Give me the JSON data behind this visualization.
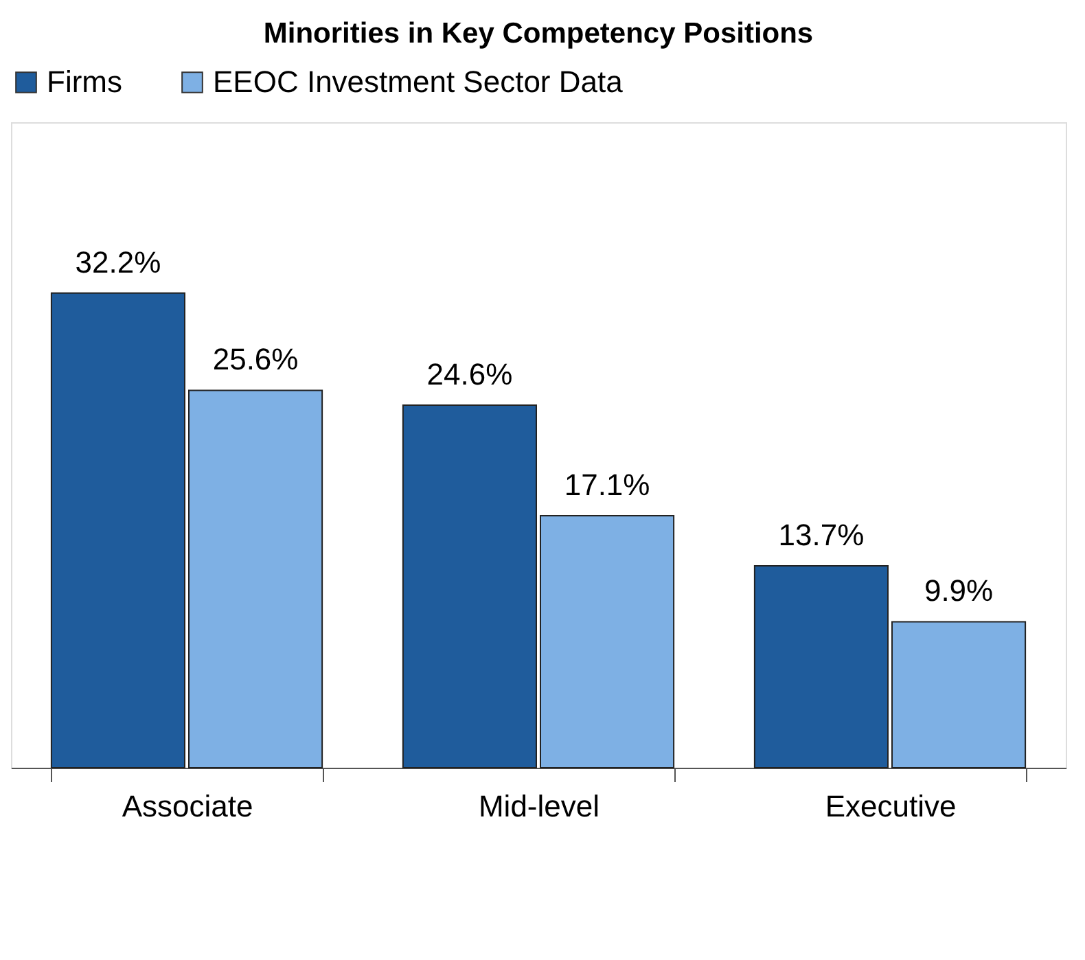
{
  "chart_data": {
    "type": "bar",
    "title": "Minorities in Key Competency Positions",
    "categories": [
      "Associate",
      "Mid-level",
      "Executive"
    ],
    "series": [
      {
        "name": "Firms",
        "color": "#1f5c9c",
        "values": [
          32.2,
          24.6,
          13.7
        ],
        "value_labels": [
          "32.2%",
          "24.6%",
          "13.7%"
        ]
      },
      {
        "name": "EEOC Investment Sector Data",
        "color": "#7eb0e4",
        "values": [
          25.6,
          17.1,
          9.9
        ],
        "value_labels": [
          "25.6%",
          "17.1%",
          "9.9%"
        ]
      }
    ],
    "legend": "top",
    "grid": false,
    "tick_labels": "x"
  }
}
